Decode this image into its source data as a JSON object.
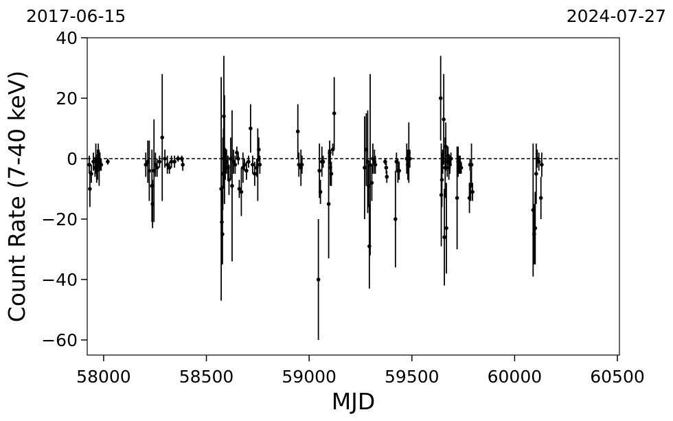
{
  "chart_data": {
    "type": "scatter",
    "xlabel": "MJD",
    "ylabel": "Count Rate (7-40 keV)",
    "xlim": [
      57920,
      60510
    ],
    "ylim": [
      -65,
      40
    ],
    "xticks": [
      58000,
      58500,
      59000,
      59500,
      60000,
      60500
    ],
    "yticks": [
      -60,
      -40,
      -20,
      0,
      20,
      40
    ],
    "xtick_labels": [
      "58000",
      "58500",
      "59000",
      "59500",
      "60000",
      "60500"
    ],
    "ytick_labels": [
      "−60",
      "−40",
      "−20",
      "0",
      "20",
      "40"
    ],
    "top_labels": {
      "left": "2017-06-15",
      "right": "2024-07-27"
    },
    "reference_line": {
      "y": 0,
      "style": "dashed"
    },
    "grid": false,
    "marker_color": "#000000",
    "points": [
      {
        "x": 57930,
        "y": -2,
        "err": 3
      },
      {
        "x": 57933,
        "y": -10,
        "err": 6
      },
      {
        "x": 57940,
        "y": -5,
        "err": 3
      },
      {
        "x": 57950,
        "y": -1,
        "err": 3
      },
      {
        "x": 57958,
        "y": -3,
        "err": 3
      },
      {
        "x": 57962,
        "y": 0,
        "err": 5
      },
      {
        "x": 57966,
        "y": -4,
        "err": 4
      },
      {
        "x": 57970,
        "y": -2,
        "err": 5
      },
      {
        "x": 57974,
        "y": 1,
        "err": 4
      },
      {
        "x": 57978,
        "y": -3,
        "err": 6
      },
      {
        "x": 57982,
        "y": -1,
        "err": 3
      },
      {
        "x": 57988,
        "y": -2,
        "err": 2
      },
      {
        "x": 58020,
        "y": -1,
        "err": 1
      },
      {
        "x": 58205,
        "y": -2,
        "err": 4
      },
      {
        "x": 58215,
        "y": -1,
        "err": 7
      },
      {
        "x": 58222,
        "y": -4,
        "err": 10
      },
      {
        "x": 58235,
        "y": -9,
        "err": 12
      },
      {
        "x": 58238,
        "y": -15,
        "err": 8
      },
      {
        "x": 58245,
        "y": -4,
        "err": 17
      },
      {
        "x": 58252,
        "y": -2,
        "err": 4
      },
      {
        "x": 58260,
        "y": -3,
        "err": 3
      },
      {
        "x": 58272,
        "y": -1,
        "err": 2
      },
      {
        "x": 58285,
        "y": 7,
        "err": 21
      },
      {
        "x": 58298,
        "y": 0,
        "err": 3
      },
      {
        "x": 58310,
        "y": -2,
        "err": 3
      },
      {
        "x": 58320,
        "y": -3,
        "err": 2
      },
      {
        "x": 58330,
        "y": -1,
        "err": 2
      },
      {
        "x": 58345,
        "y": -1,
        "err": 2
      },
      {
        "x": 58362,
        "y": 0,
        "err": 1
      },
      {
        "x": 58380,
        "y": 0,
        "err": 1
      },
      {
        "x": 58385,
        "y": -2,
        "err": 2
      },
      {
        "x": 58572,
        "y": -10,
        "err": 37
      },
      {
        "x": 58575,
        "y": -21,
        "err": 12
      },
      {
        "x": 58578,
        "y": -25,
        "err": 10
      },
      {
        "x": 58580,
        "y": -5,
        "err": 12
      },
      {
        "x": 58583,
        "y": 0,
        "err": 10
      },
      {
        "x": 58585,
        "y": 14,
        "err": 20
      },
      {
        "x": 58588,
        "y": 3,
        "err": 18
      },
      {
        "x": 58592,
        "y": -2,
        "err": 5
      },
      {
        "x": 58598,
        "y": -1,
        "err": 4
      },
      {
        "x": 58605,
        "y": -3,
        "err": 4
      },
      {
        "x": 58610,
        "y": -7,
        "err": 5
      },
      {
        "x": 58618,
        "y": 0,
        "err": 7
      },
      {
        "x": 58625,
        "y": -9,
        "err": 25
      },
      {
        "x": 58632,
        "y": -1,
        "err": 4
      },
      {
        "x": 58640,
        "y": -2,
        "err": 3
      },
      {
        "x": 58648,
        "y": 2,
        "err": 2
      },
      {
        "x": 58655,
        "y": 0,
        "err": 2
      },
      {
        "x": 58660,
        "y": -10,
        "err": 3
      },
      {
        "x": 58670,
        "y": -11,
        "err": 8
      },
      {
        "x": 58678,
        "y": -3,
        "err": 5
      },
      {
        "x": 58685,
        "y": -2,
        "err": 2
      },
      {
        "x": 58695,
        "y": -4,
        "err": 3
      },
      {
        "x": 58705,
        "y": -1,
        "err": 2
      },
      {
        "x": 58715,
        "y": 10,
        "err": 8
      },
      {
        "x": 58725,
        "y": -2,
        "err": 3
      },
      {
        "x": 58735,
        "y": -5,
        "err": 4
      },
      {
        "x": 58745,
        "y": -3,
        "err": 3
      },
      {
        "x": 58750,
        "y": -2,
        "err": 12
      },
      {
        "x": 58755,
        "y": 3,
        "err": 4
      },
      {
        "x": 58760,
        "y": -2,
        "err": 3
      },
      {
        "x": 58945,
        "y": 9,
        "err": 9
      },
      {
        "x": 58950,
        "y": -2,
        "err": 4
      },
      {
        "x": 58960,
        "y": -3,
        "err": 6
      },
      {
        "x": 58965,
        "y": -2,
        "err": 3
      },
      {
        "x": 59045,
        "y": -40,
        "err": 20
      },
      {
        "x": 59050,
        "y": -4,
        "err": 9
      },
      {
        "x": 59055,
        "y": -11,
        "err": 4
      },
      {
        "x": 59062,
        "y": -1,
        "err": 5
      },
      {
        "x": 59068,
        "y": -1,
        "err": 2
      },
      {
        "x": 59095,
        "y": -15,
        "err": 18
      },
      {
        "x": 59100,
        "y": 2,
        "err": 4
      },
      {
        "x": 59103,
        "y": -3,
        "err": 6
      },
      {
        "x": 59108,
        "y": -5,
        "err": 4
      },
      {
        "x": 59115,
        "y": 3,
        "err": 2
      },
      {
        "x": 59122,
        "y": 15,
        "err": 12
      },
      {
        "x": 59270,
        "y": -3,
        "err": 17
      },
      {
        "x": 59278,
        "y": 3,
        "err": 12
      },
      {
        "x": 59285,
        "y": -1,
        "err": 17
      },
      {
        "x": 59290,
        "y": -9,
        "err": 7
      },
      {
        "x": 59293,
        "y": -29,
        "err": 14
      },
      {
        "x": 59297,
        "y": -2,
        "err": 30
      },
      {
        "x": 59305,
        "y": -8,
        "err": 6
      },
      {
        "x": 59310,
        "y": 0,
        "err": 5
      },
      {
        "x": 59318,
        "y": -1,
        "err": 4
      },
      {
        "x": 59322,
        "y": -2,
        "err": 3
      },
      {
        "x": 59370,
        "y": -1,
        "err": 1
      },
      {
        "x": 59375,
        "y": -3,
        "err": 2
      },
      {
        "x": 59378,
        "y": -6,
        "err": 2
      },
      {
        "x": 59420,
        "y": -20,
        "err": 16
      },
      {
        "x": 59425,
        "y": -1,
        "err": 3
      },
      {
        "x": 59432,
        "y": -4,
        "err": 4
      },
      {
        "x": 59438,
        "y": -4,
        "err": 3
      },
      {
        "x": 59475,
        "y": 0,
        "err": 5
      },
      {
        "x": 59480,
        "y": -2,
        "err": 5
      },
      {
        "x": 59485,
        "y": 2,
        "err": 10
      },
      {
        "x": 59490,
        "y": 0,
        "err": 3
      },
      {
        "x": 59640,
        "y": 20,
        "err": 14
      },
      {
        "x": 59643,
        "y": -12,
        "err": 17
      },
      {
        "x": 59646,
        "y": -7,
        "err": 9
      },
      {
        "x": 59650,
        "y": -1,
        "err": 4
      },
      {
        "x": 59655,
        "y": 13,
        "err": 15
      },
      {
        "x": 59658,
        "y": -26,
        "err": 16
      },
      {
        "x": 59662,
        "y": -3,
        "err": 10
      },
      {
        "x": 59665,
        "y": 4,
        "err": 8
      },
      {
        "x": 59668,
        "y": -23,
        "err": 15
      },
      {
        "x": 59672,
        "y": -1,
        "err": 5
      },
      {
        "x": 59676,
        "y": 1,
        "err": 3
      },
      {
        "x": 59680,
        "y": -3,
        "err": 4
      },
      {
        "x": 59685,
        "y": -2,
        "err": 3
      },
      {
        "x": 59690,
        "y": 0,
        "err": 2
      },
      {
        "x": 59720,
        "y": -13,
        "err": 17
      },
      {
        "x": 59725,
        "y": -1,
        "err": 5
      },
      {
        "x": 59730,
        "y": -2,
        "err": 3
      },
      {
        "x": 59735,
        "y": -2,
        "err": 3
      },
      {
        "x": 59740,
        "y": -3,
        "err": 2
      },
      {
        "x": 59780,
        "y": -13,
        "err": 5
      },
      {
        "x": 59783,
        "y": -2,
        "err": 2
      },
      {
        "x": 59786,
        "y": -9,
        "err": 5
      },
      {
        "x": 59790,
        "y": -2,
        "err": 7
      },
      {
        "x": 59795,
        "y": -11,
        "err": 3
      },
      {
        "x": 60090,
        "y": -17,
        "err": 22
      },
      {
        "x": 60095,
        "y": -25,
        "err": 10
      },
      {
        "x": 60100,
        "y": -23,
        "err": 12
      },
      {
        "x": 60105,
        "y": -5,
        "err": 10
      },
      {
        "x": 60110,
        "y": 0,
        "err": 3
      },
      {
        "x": 60118,
        "y": -1,
        "err": 3
      },
      {
        "x": 60128,
        "y": -13,
        "err": 7
      },
      {
        "x": 60132,
        "y": -2,
        "err": 4
      }
    ]
  }
}
